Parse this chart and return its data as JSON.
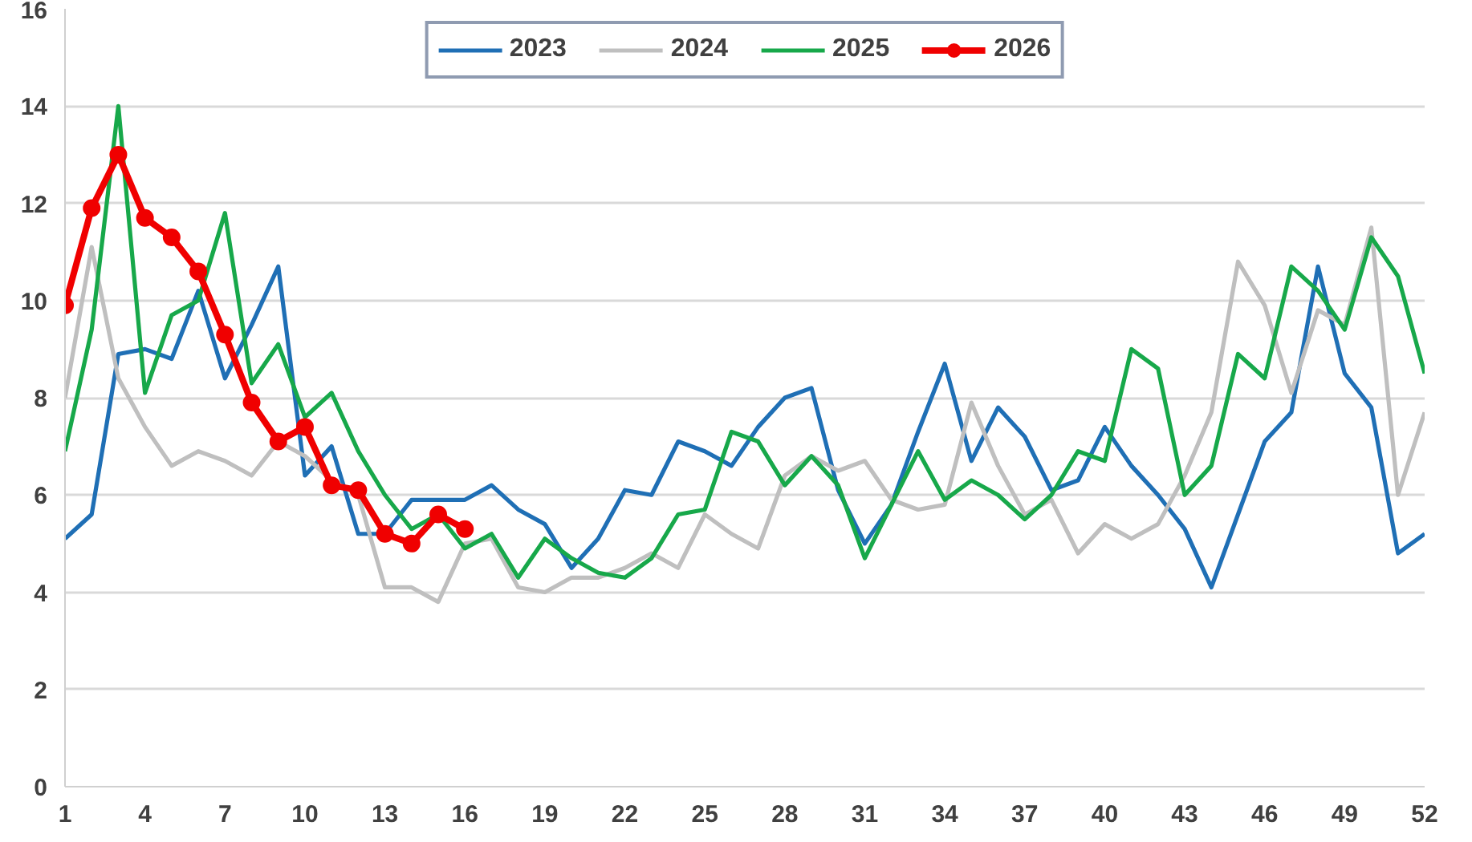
{
  "chart_data": {
    "type": "line",
    "x": [
      1,
      2,
      3,
      4,
      5,
      6,
      7,
      8,
      9,
      10,
      11,
      12,
      13,
      14,
      15,
      16,
      17,
      18,
      19,
      20,
      21,
      22,
      23,
      24,
      25,
      26,
      27,
      28,
      29,
      30,
      31,
      32,
      33,
      34,
      35,
      36,
      37,
      38,
      39,
      40,
      41,
      42,
      43,
      44,
      45,
      46,
      47,
      48,
      49,
      50,
      51,
      52
    ],
    "xlim": [
      1,
      52
    ],
    "xticks": [
      1,
      4,
      7,
      10,
      13,
      16,
      19,
      22,
      25,
      28,
      31,
      34,
      37,
      40,
      43,
      46,
      49,
      52
    ],
    "ylim": [
      0,
      16
    ],
    "yticks": [
      0,
      2,
      4,
      6,
      8,
      10,
      12,
      14,
      16
    ],
    "grid": "y",
    "legend": "top",
    "line_style": "solid",
    "marker": "none",
    "series": [
      {
        "name": "2023",
        "color": "#1f6fb5",
        "values": [
          5.1,
          5.6,
          8.9,
          9.0,
          8.8,
          10.2,
          8.4,
          9.5,
          10.7,
          6.4,
          7.0,
          5.2,
          5.2,
          5.9,
          5.9,
          5.9,
          6.2,
          5.7,
          5.4,
          4.5,
          5.1,
          6.1,
          6.0,
          7.1,
          6.9,
          6.6,
          7.4,
          8.0,
          8.2,
          6.1,
          5.0,
          5.8,
          7.3,
          8.7,
          6.7,
          7.8,
          7.2,
          6.1,
          6.3,
          7.4,
          6.6,
          6.0,
          5.3,
          4.1,
          5.6,
          7.1,
          7.7,
          10.7,
          8.5,
          7.8,
          4.8,
          5.2
        ]
      },
      {
        "name": "2024",
        "color": "#bfbfbf",
        "values": [
          8.0,
          11.1,
          8.4,
          7.4,
          6.6,
          6.9,
          6.7,
          6.4,
          7.1,
          6.8,
          6.3,
          6.0,
          4.1,
          4.1,
          3.8,
          5.0,
          5.1,
          4.1,
          4.0,
          4.3,
          4.3,
          4.5,
          4.8,
          4.5,
          5.6,
          5.2,
          4.9,
          6.4,
          6.8,
          6.5,
          6.7,
          5.9,
          5.7,
          5.8,
          7.9,
          6.6,
          5.6,
          5.9,
          4.8,
          5.4,
          5.1,
          5.4,
          6.4,
          7.7,
          10.8,
          9.9,
          8.1,
          9.8,
          9.5,
          11.5,
          6.0,
          7.7
        ]
      },
      {
        "name": "2025",
        "color": "#17a84a",
        "values": [
          6.9,
          9.4,
          14.0,
          8.1,
          9.7,
          10.0,
          11.8,
          8.3,
          9.1,
          7.6,
          8.1,
          6.9,
          6.0,
          5.3,
          5.6,
          4.9,
          5.2,
          4.3,
          5.1,
          4.7,
          4.4,
          4.3,
          4.7,
          5.6,
          5.7,
          7.3,
          7.1,
          6.2,
          6.8,
          6.2,
          4.7,
          5.8,
          6.9,
          5.9,
          6.3,
          6.0,
          5.5,
          6.0,
          6.9,
          6.7,
          9.0,
          8.6,
          6.0,
          6.6,
          8.9,
          8.4,
          10.7,
          10.2,
          9.4,
          11.3,
          10.5,
          8.5
        ]
      },
      {
        "name": "2026",
        "color": "#f00000",
        "marker": "circle",
        "x": [
          1,
          2,
          3,
          4,
          5,
          6,
          7,
          8,
          9,
          10,
          11,
          12,
          13,
          14,
          15,
          16
        ],
        "values": [
          9.9,
          11.9,
          13.0,
          11.7,
          11.3,
          10.6,
          9.3,
          7.9,
          7.1,
          7.4,
          6.2,
          6.1,
          5.2,
          5.0,
          5.6,
          5.3
        ]
      }
    ]
  }
}
